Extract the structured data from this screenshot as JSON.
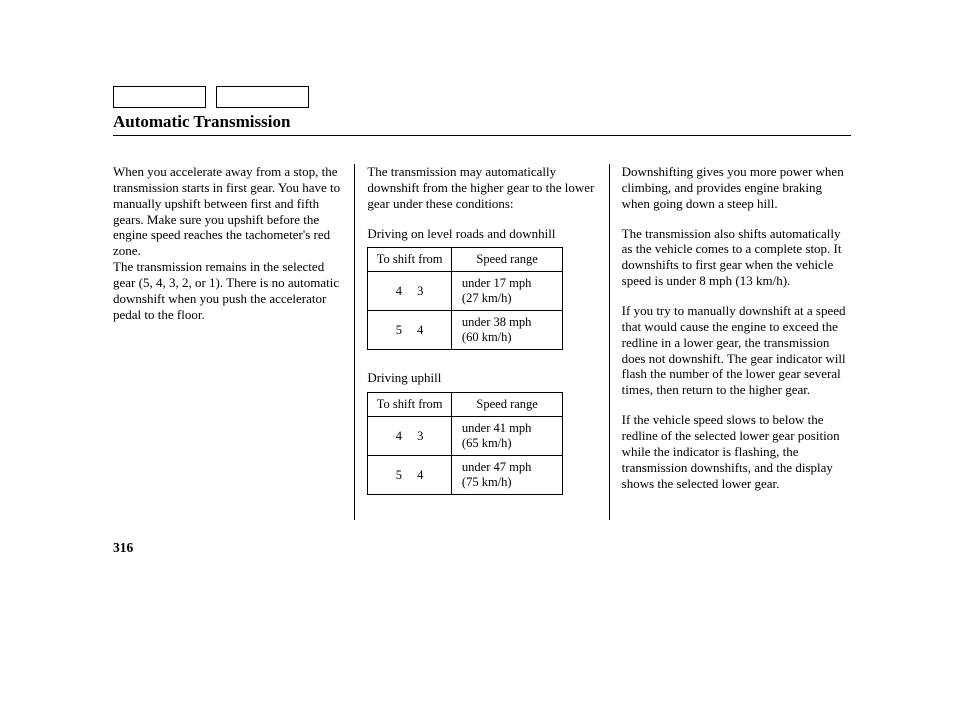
{
  "page": {
    "title": "Automatic Transmission",
    "page_number": "316"
  },
  "left_column": {
    "p1": "When you accelerate away from a stop, the transmission starts in first gear. You have to manually upshift between first and fifth gears. Make sure you upshift before the engine speed reaches the tachometer's red zone.",
    "p2": "The transmission remains in the selected gear (5, 4, 3, 2, or 1). There is no automatic downshift when you push the accelerator pedal to the floor."
  },
  "mid_column": {
    "intro": "The transmission may automatically downshift from the higher gear to the lower gear under these conditions:",
    "table1_caption": "Driving on level roads and downhill",
    "table2_caption": "Driving uphill",
    "headers": {
      "shift": "To shift from",
      "speed": "Speed range"
    },
    "table1": {
      "rows": [
        {
          "from": "4",
          "to": "3",
          "speed_l1": "under 17 mph",
          "speed_l2": "(27 km/h)"
        },
        {
          "from": "5",
          "to": "4",
          "speed_l1": "under 38 mph",
          "speed_l2": "(60 km/h)"
        }
      ]
    },
    "table2": {
      "rows": [
        {
          "from": "4",
          "to": "3",
          "speed_l1": "under 41 mph",
          "speed_l2": "(65 km/h)"
        },
        {
          "from": "5",
          "to": "4",
          "speed_l1": "under 47 mph",
          "speed_l2": "(75 km/h)"
        }
      ]
    }
  },
  "right_column": {
    "p1": "Downshifting gives you more power when climbing, and provides engine braking when going down a steep hill.",
    "p2": "The transmission also shifts automatically as the vehicle comes to a complete stop. It downshifts to first gear when the vehicle speed is under 8 mph (13 km/h).",
    "p3": "If you try to manually downshift at a speed that would cause the engine to exceed the redline in a lower gear, the transmission does not downshift. The gear indicator will flash the number of the lower gear several times, then return to the higher gear.",
    "p4": "If the vehicle speed slows to below the redline of the selected lower gear position while the indicator is flashing, the transmission downshifts, and the display shows the selected lower gear."
  }
}
